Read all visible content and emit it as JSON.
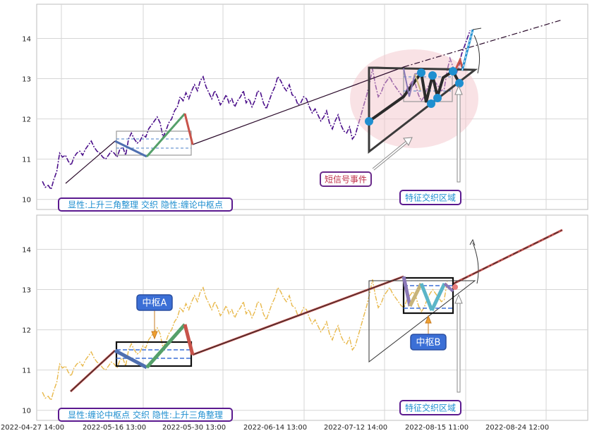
{
  "chart_data": [
    {
      "type": "line",
      "ylim": [
        9.75,
        14.85
      ],
      "yticks": [
        10,
        11,
        12,
        13,
        14
      ],
      "grid": true,
      "series": [
        {
          "values": [
            10.45,
            10.3,
            10.35,
            10.25,
            10.5,
            10.7,
            11.15,
            11.05,
            11.1,
            10.95,
            10.85,
            11.05,
            11.15,
            11.2,
            11.1,
            11.25,
            11.35,
            11.45,
            11.3,
            11.2,
            11.15,
            11.05,
            11.0,
            11.1,
            11.2,
            11.15,
            11.05,
            11.25,
            11.3,
            11.1,
            11.5,
            11.65,
            11.5,
            11.4,
            11.45,
            11.6,
            11.55,
            11.75,
            11.85,
            11.95,
            12.05,
            11.9,
            11.55,
            11.7,
            11.9,
            12.0,
            12.2,
            12.3,
            12.55,
            12.45,
            12.65,
            12.5,
            12.7,
            12.85,
            12.7,
            12.95,
            13.05,
            12.8,
            12.65,
            12.5,
            12.7,
            12.55,
            12.35,
            12.45,
            12.6,
            12.4,
            12.5,
            12.3,
            12.45,
            12.55,
            12.7,
            12.4,
            12.5,
            12.3,
            12.45,
            12.7,
            12.65,
            12.4,
            12.25,
            12.45,
            12.65,
            12.8,
            13.05,
            12.95,
            12.8,
            12.7,
            12.85,
            12.6,
            12.55,
            12.35,
            12.4,
            12.55,
            12.5,
            12.3,
            12.15,
            12.25,
            12.1,
            11.95,
            12.05,
            12.2,
            11.9,
            11.75,
            11.95,
            12.1,
            11.85,
            11.7,
            11.65,
            11.8,
            11.5,
            11.6,
            11.85,
            12.1,
            12.35,
            12.6,
            12.9,
            13.25,
            12.85,
            12.55,
            12.65,
            12.85,
            12.95,
            13.05,
            12.9,
            12.8,
            12.7,
            12.6,
            12.55,
            12.75,
            12.85,
            12.95,
            12.85,
            12.6,
            12.45,
            12.55,
            12.75,
            12.9,
            13.0,
            12.9,
            12.8,
            12.7,
            12.75,
            13.2,
            13.5,
            13.3,
            13.1,
            13.25,
            13.6,
            13.8,
            14.0,
            14.2
          ]
        }
      ]
    },
    {
      "type": "line",
      "ylim": [
        9.75,
        14.85
      ],
      "yticks": [
        10,
        11,
        12,
        13,
        14
      ],
      "xticks": [
        "2022-04-27 14:00",
        "2022-05-16 13:00",
        "2022-05-30 13:00",
        "2022-06-14 13:00",
        "2022-07-12 14:00",
        "2022-08-15 11:00",
        "2022-08-24 12:00"
      ],
      "grid": true,
      "series": [
        {
          "values": [
            10.45,
            10.3,
            10.35,
            10.25,
            10.5,
            10.7,
            11.15,
            11.05,
            11.1,
            10.95,
            10.85,
            11.05,
            11.15,
            11.2,
            11.1,
            11.25,
            11.35,
            11.45,
            11.3,
            11.2,
            11.15,
            11.05,
            11.0,
            11.1,
            11.2,
            11.15,
            11.05,
            11.25,
            11.3,
            11.1,
            11.5,
            11.65,
            11.5,
            11.4,
            11.45,
            11.6,
            11.55,
            11.75,
            11.85,
            11.95,
            12.05,
            11.9,
            11.55,
            11.7,
            11.9,
            12.0,
            12.2,
            12.3,
            12.55,
            12.45,
            12.65,
            12.5,
            12.7,
            12.85,
            12.7,
            12.95,
            13.05,
            12.8,
            12.65,
            12.5,
            12.7,
            12.55,
            12.35,
            12.45,
            12.6,
            12.4,
            12.5,
            12.3,
            12.45,
            12.55,
            12.7,
            12.4,
            12.5,
            12.3,
            12.45,
            12.7,
            12.65,
            12.4,
            12.25,
            12.45,
            12.65,
            12.8,
            13.05,
            12.95,
            12.8,
            12.7,
            12.85,
            12.6,
            12.55,
            12.35,
            12.4,
            12.55,
            12.5,
            12.3,
            12.15,
            12.25,
            12.1,
            11.95,
            12.05,
            12.2,
            11.9,
            11.75,
            11.95,
            12.1,
            11.85,
            11.7,
            11.65,
            11.8,
            11.5,
            11.6,
            11.85,
            12.1,
            12.35,
            12.6,
            12.9,
            13.25,
            12.85,
            12.55,
            12.65,
            12.85,
            12.95,
            13.05,
            12.9,
            12.8,
            12.7,
            12.6,
            12.55,
            12.75,
            12.85,
            12.95,
            12.85,
            12.6,
            12.45,
            12.55,
            12.75,
            12.9,
            13.0,
            12.9,
            12.8,
            12.7,
            12.75,
            13.2
          ]
        }
      ]
    }
  ],
  "annotations": {
    "top_info": "显性:上升三角整理 交织 隐性:缠论中枢点",
    "top_event": "短信号事件",
    "top_zone": "特征交织区域",
    "bottom_info": "显性:缠论中枢点 交织 隐性:上升三角整理",
    "bottom_hub_a": "中枢A",
    "bottom_hub_b": "中枢B",
    "bottom_zone": "特征交织区域"
  },
  "colors": {
    "top_price": "#4b0f8a",
    "bottom_price": "#e8b84a",
    "label_border": "#5b1a8f",
    "label_text": "#1f8fd0",
    "hub_box_fill": "#3b6fd6",
    "event_text": "#c0304a",
    "ellipse": "#f3c6cc",
    "stroke_blue": "#4f6fb0",
    "stroke_green": "#55a06a",
    "stroke_red": "#c8534a",
    "stroke_purple": "#8a78b6",
    "stroke_tan": "#c8b47a",
    "stroke_teal": "#5bb5c8",
    "node_blue": "#1f8fd0",
    "trend_dark": "#2a2a2a",
    "trend_red": "#c0504d"
  }
}
